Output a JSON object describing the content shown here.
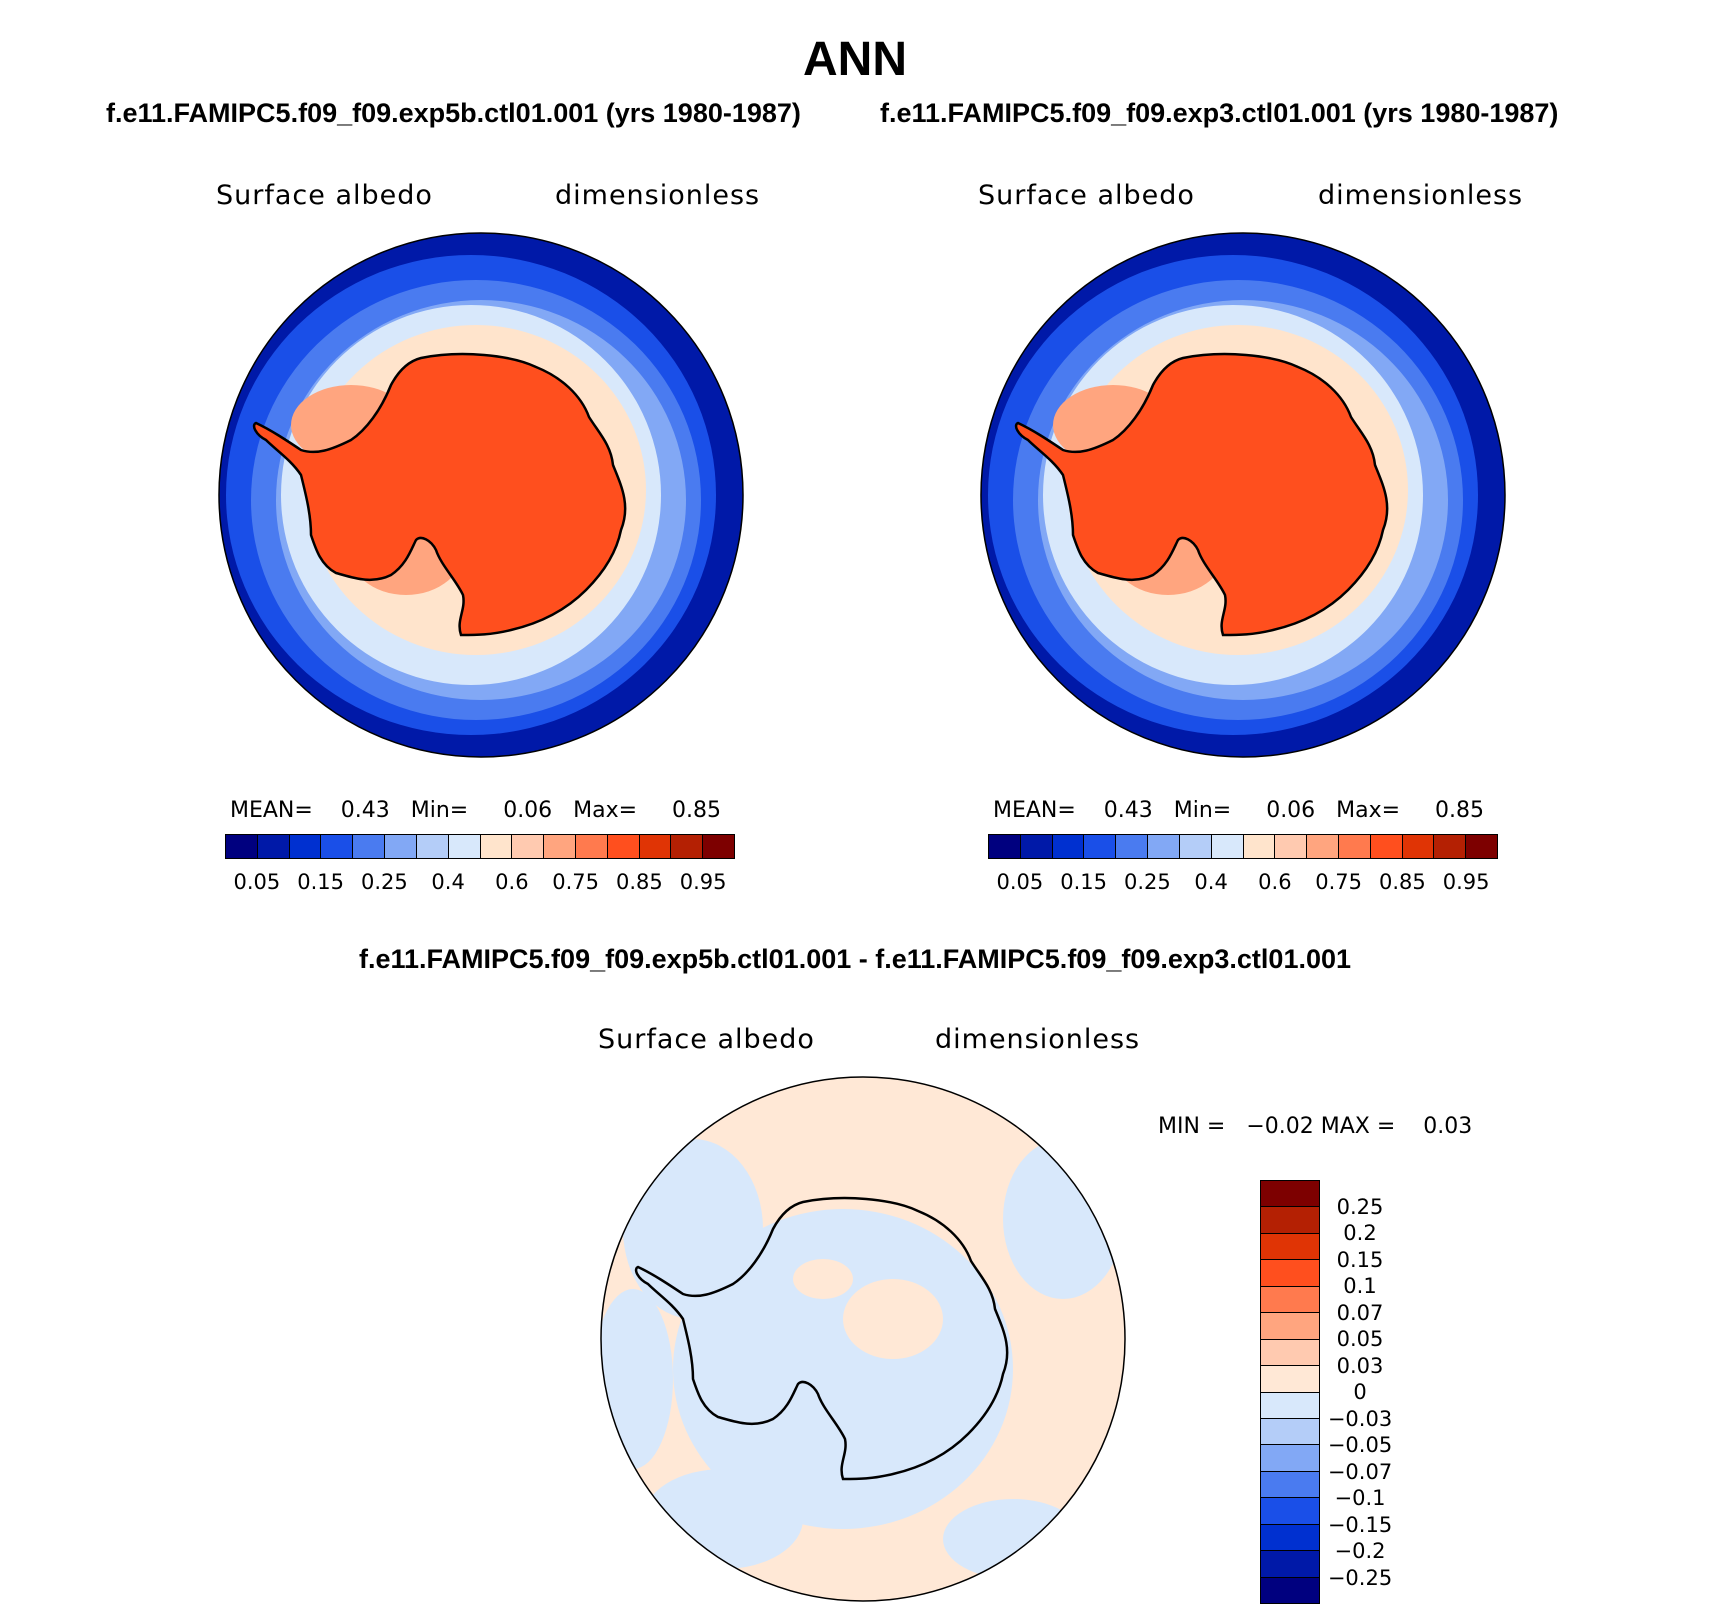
{
  "title": "ANN",
  "left": {
    "run": "f.e11.FAMIPC5.f09_f09.exp5b.ctl01.001 (yrs 1980-1987)",
    "variable": "Surface albedo",
    "units": "dimensionless",
    "stats": "MEAN=    0.43   Min=     0.06   Max=     0.85"
  },
  "right": {
    "run": "f.e11.FAMIPC5.f09_f09.exp3.ctl01.001 (yrs 1980-1987)",
    "variable": "Surface albedo",
    "units": "dimensionless",
    "stats": "MEAN=    0.43   Min=     0.06   Max=     0.85"
  },
  "diff": {
    "title": "f.e11.FAMIPC5.f09_f09.exp5b.ctl01.001 - f.e11.FAMIPC5.f09_f09.exp3.ctl01.001",
    "variable": "Surface albedo",
    "units": "dimensionless",
    "stats": "MIN =   −0.02 MAX =    0.03"
  },
  "colorbar_top": {
    "colors": [
      "#00007f",
      "#0019a8",
      "#0030d0",
      "#1a4fe8",
      "#4a7bf0",
      "#82a8f5",
      "#b4cdf8",
      "#d8e8fb",
      "#ffe4cc",
      "#ffcab0",
      "#ffa57f",
      "#ff7a4e",
      "#ff4f1e",
      "#e03405",
      "#b42003",
      "#7d0000"
    ],
    "ticks": [
      "0.05",
      "0.15",
      "0.25",
      "0.4",
      "0.6",
      "0.75",
      "0.85",
      "0.95"
    ]
  },
  "colorbar_diff": {
    "colors": [
      "#7d0000",
      "#b42003",
      "#e03405",
      "#ff4f1e",
      "#ff7a4e",
      "#ffa57f",
      "#ffcab0",
      "#ffe8d6",
      "#d8e8fb",
      "#b4cdf8",
      "#82a8f5",
      "#4a7bf0",
      "#1a4fe8",
      "#0030d0",
      "#0019a8",
      "#00007f"
    ],
    "labels": [
      "0.25",
      "0.2",
      "0.15",
      "0.1",
      "0.07",
      "0.05",
      "0.03",
      "0",
      "−0.03",
      "−0.05",
      "−0.07",
      "−0.1",
      "−0.15",
      "−0.2",
      "−0.25"
    ]
  }
}
